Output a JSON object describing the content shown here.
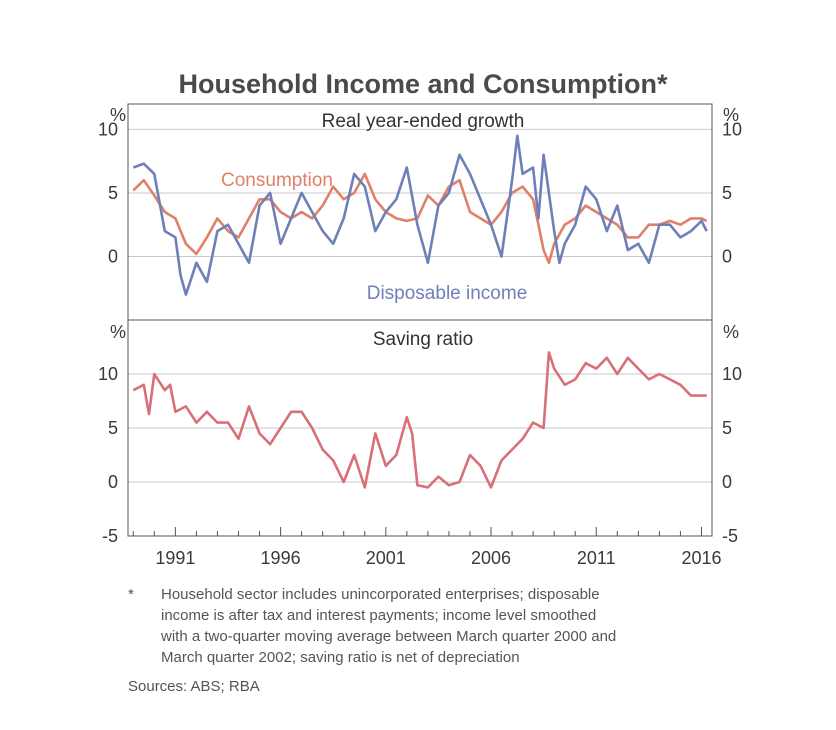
{
  "title": "Household Income and Consumption*",
  "footnote": {
    "marker": "*",
    "lines": [
      "Household sector includes unincorporated enterprises; disposable",
      "income is after tax and interest payments; income level smoothed",
      "with a two-quarter moving average between March quarter 2000 and",
      "March quarter 2002; saving ratio is net of depreciation"
    ]
  },
  "sources": "Sources:  ABS; RBA",
  "colors": {
    "consumption": "#e0806a",
    "disposable_income": "#6f7fb8",
    "saving_ratio": "#d8707a",
    "grid": "#c8c8c8",
    "axis": "#555555"
  },
  "chart_data": [
    {
      "type": "line",
      "title": "Real year-ended growth",
      "ylabel": "%",
      "ylim": [
        -5,
        12
      ],
      "yticks": [
        "10",
        "5",
        "0"
      ],
      "ytick_values": [
        10,
        5,
        0
      ],
      "x_range": [
        1988.75,
        2016.5
      ],
      "grid": "horizontal",
      "series": [
        {
          "name": "Consumption",
          "color": "#e0806a",
          "x": [
            1989.0,
            1989.5,
            1990.0,
            1990.5,
            1991.0,
            1991.5,
            1992.0,
            1992.5,
            1993.0,
            1993.5,
            1994.0,
            1994.5,
            1995.0,
            1995.5,
            1996.0,
            1996.5,
            1997.0,
            1997.5,
            1998.0,
            1998.5,
            1999.0,
            1999.5,
            2000.0,
            2000.5,
            2001.0,
            2001.5,
            2002.0,
            2002.5,
            2003.0,
            2003.5,
            2004.0,
            2004.5,
            2005.0,
            2005.5,
            2006.0,
            2006.5,
            2007.0,
            2007.5,
            2008.0,
            2008.25,
            2008.5,
            2008.75,
            2009.0,
            2009.5,
            2010.0,
            2010.5,
            2011.0,
            2011.5,
            2012.0,
            2012.5,
            2013.0,
            2013.5,
            2014.0,
            2014.5,
            2015.0,
            2015.5,
            2016.0,
            2016.25
          ],
          "y": [
            5.2,
            6.0,
            4.8,
            3.5,
            3.0,
            1.0,
            0.2,
            1.5,
            3.0,
            2.0,
            1.5,
            3.0,
            4.5,
            4.5,
            3.5,
            3.0,
            3.5,
            3.0,
            4.0,
            5.5,
            4.5,
            5.0,
            6.5,
            4.5,
            3.5,
            3.0,
            2.8,
            3.0,
            4.8,
            4.0,
            5.5,
            6.0,
            3.5,
            3.0,
            2.5,
            3.5,
            5.0,
            5.5,
            4.5,
            2.5,
            0.5,
            -0.5,
            1.0,
            2.5,
            3.0,
            4.0,
            3.5,
            3.0,
            2.5,
            1.5,
            1.5,
            2.5,
            2.5,
            2.8,
            2.5,
            3.0,
            3.0,
            2.8
          ]
        },
        {
          "name": "Disposable income",
          "color": "#6f7fb8",
          "x": [
            1989.0,
            1989.5,
            1990.0,
            1990.5,
            1991.0,
            1991.25,
            1991.5,
            1992.0,
            1992.5,
            1993.0,
            1993.5,
            1994.0,
            1994.5,
            1995.0,
            1995.5,
            1996.0,
            1996.5,
            1997.0,
            1997.5,
            1998.0,
            1998.5,
            1999.0,
            1999.5,
            2000.0,
            2000.5,
            2001.0,
            2001.5,
            2002.0,
            2002.5,
            2003.0,
            2003.5,
            2004.0,
            2004.5,
            2005.0,
            2005.5,
            2006.0,
            2006.5,
            2007.0,
            2007.25,
            2007.5,
            2008.0,
            2008.25,
            2008.5,
            2009.0,
            2009.25,
            2009.5,
            2010.0,
            2010.5,
            2011.0,
            2011.5,
            2012.0,
            2012.5,
            2013.0,
            2013.5,
            2014.0,
            2014.5,
            2015.0,
            2015.5,
            2016.0,
            2016.25
          ],
          "y": [
            7.0,
            7.3,
            6.5,
            2.0,
            1.5,
            -1.5,
            -3.0,
            -0.5,
            -2.0,
            2.0,
            2.5,
            1.0,
            -0.5,
            4.0,
            5.0,
            1.0,
            3.0,
            5.0,
            3.5,
            2.0,
            1.0,
            3.0,
            6.5,
            5.5,
            2.0,
            3.5,
            4.5,
            7.0,
            2.5,
            -0.5,
            4.0,
            5.0,
            8.0,
            6.5,
            4.5,
            2.5,
            0.0,
            6.0,
            9.5,
            6.5,
            7.0,
            3.0,
            8.0,
            2.0,
            -0.5,
            1.0,
            2.5,
            5.5,
            4.5,
            2.0,
            4.0,
            0.5,
            1.0,
            -0.5,
            2.5,
            2.5,
            1.5,
            2.0,
            2.8,
            2.0
          ]
        }
      ],
      "annotations": [
        {
          "text": "Consumption",
          "series": "Consumption"
        },
        {
          "text": "Disposable income",
          "series": "Disposable income"
        }
      ]
    },
    {
      "type": "line",
      "title": "Saving ratio",
      "ylabel": "%",
      "ylim": [
        -5,
        15
      ],
      "yticks": [
        "10",
        "5",
        "0",
        "-5"
      ],
      "ytick_values": [
        10,
        5,
        0,
        -5
      ],
      "xticks": [
        "1991",
        "1996",
        "2001",
        "2006",
        "2011",
        "2016"
      ],
      "xtick_values": [
        1991,
        1996,
        2001,
        2006,
        2011,
        2016
      ],
      "x_range": [
        1988.75,
        2016.5
      ],
      "grid": "horizontal",
      "series": [
        {
          "name": "Saving ratio",
          "color": "#d8707a",
          "x": [
            1989.0,
            1989.5,
            1989.75,
            1990.0,
            1990.5,
            1990.75,
            1991.0,
            1991.5,
            1992.0,
            1992.5,
            1993.0,
            1993.5,
            1994.0,
            1994.5,
            1995.0,
            1995.5,
            1996.0,
            1996.5,
            1997.0,
            1997.5,
            1998.0,
            1998.5,
            1999.0,
            1999.5,
            2000.0,
            2000.5,
            2001.0,
            2001.5,
            2002.0,
            2002.25,
            2002.5,
            2003.0,
            2003.5,
            2004.0,
            2004.5,
            2005.0,
            2005.5,
            2006.0,
            2006.5,
            2007.0,
            2007.5,
            2008.0,
            2008.5,
            2008.75,
            2009.0,
            2009.5,
            2010.0,
            2010.5,
            2011.0,
            2011.5,
            2012.0,
            2012.5,
            2013.0,
            2013.5,
            2014.0,
            2014.5,
            2015.0,
            2015.5,
            2016.0,
            2016.25
          ],
          "y": [
            8.5,
            9.0,
            6.3,
            10.0,
            8.5,
            9.0,
            6.5,
            7.0,
            5.5,
            6.5,
            5.5,
            5.5,
            4.0,
            7.0,
            4.5,
            3.5,
            5.0,
            6.5,
            6.5,
            5.0,
            3.0,
            2.0,
            0.0,
            2.5,
            -0.5,
            4.5,
            1.5,
            2.5,
            6.0,
            4.5,
            -0.3,
            -0.5,
            0.5,
            -0.3,
            0.0,
            2.5,
            1.5,
            -0.5,
            2.0,
            3.0,
            4.0,
            5.5,
            5.0,
            12.0,
            10.5,
            9.0,
            9.5,
            11.0,
            10.5,
            11.5,
            10.0,
            11.5,
            10.5,
            9.5,
            10.0,
            9.5,
            9.0,
            8.0,
            8.0,
            8.0
          ]
        }
      ]
    }
  ]
}
